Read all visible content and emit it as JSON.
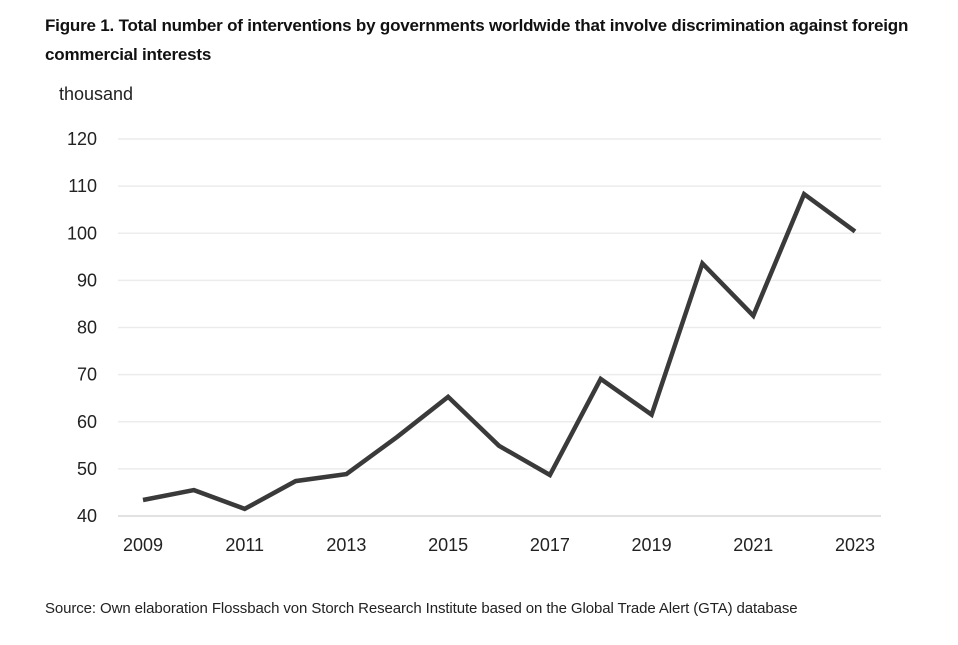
{
  "figure": {
    "title": "Figure 1. Total number of interventions by governments worldwide that involve discrimination against foreign commercial interests",
    "unit_label": "thousand",
    "source": "Source: Own elaboration Flossbach von Storch Research Institute based on the Global Trade Alert (GTA) database"
  },
  "chart_data": {
    "type": "line",
    "title": "Figure 1. Total number of interventions by governments worldwide that involve discrimination against foreign commercial interests",
    "xlabel": "",
    "ylabel": "thousand",
    "x": [
      2009,
      2010,
      2011,
      2012,
      2013,
      2014,
      2015,
      2016,
      2017,
      2018,
      2019,
      2020,
      2021,
      2022,
      2023
    ],
    "series": [
      {
        "name": "Interventions",
        "values": [
          43.4,
          45.5,
          41.5,
          47.4,
          48.9,
          56.8,
          65.3,
          54.9,
          48.7,
          69.1,
          61.5,
          93.6,
          82.5,
          108.3,
          100.4
        ],
        "color": "#3a3a3a"
      }
    ],
    "x_tick_labels": [
      "2009",
      "2011",
      "2013",
      "2015",
      "2017",
      "2019",
      "2021",
      "2023"
    ],
    "y_ticks": [
      40,
      50,
      60,
      70,
      80,
      90,
      100,
      110,
      120
    ],
    "ylim": [
      40,
      120
    ],
    "xlim": [
      2009,
      2023
    ],
    "grid": true,
    "legend": "none"
  },
  "colors": {
    "line": "#3a3a3a",
    "grid": "#ececec",
    "text": "#222222"
  }
}
